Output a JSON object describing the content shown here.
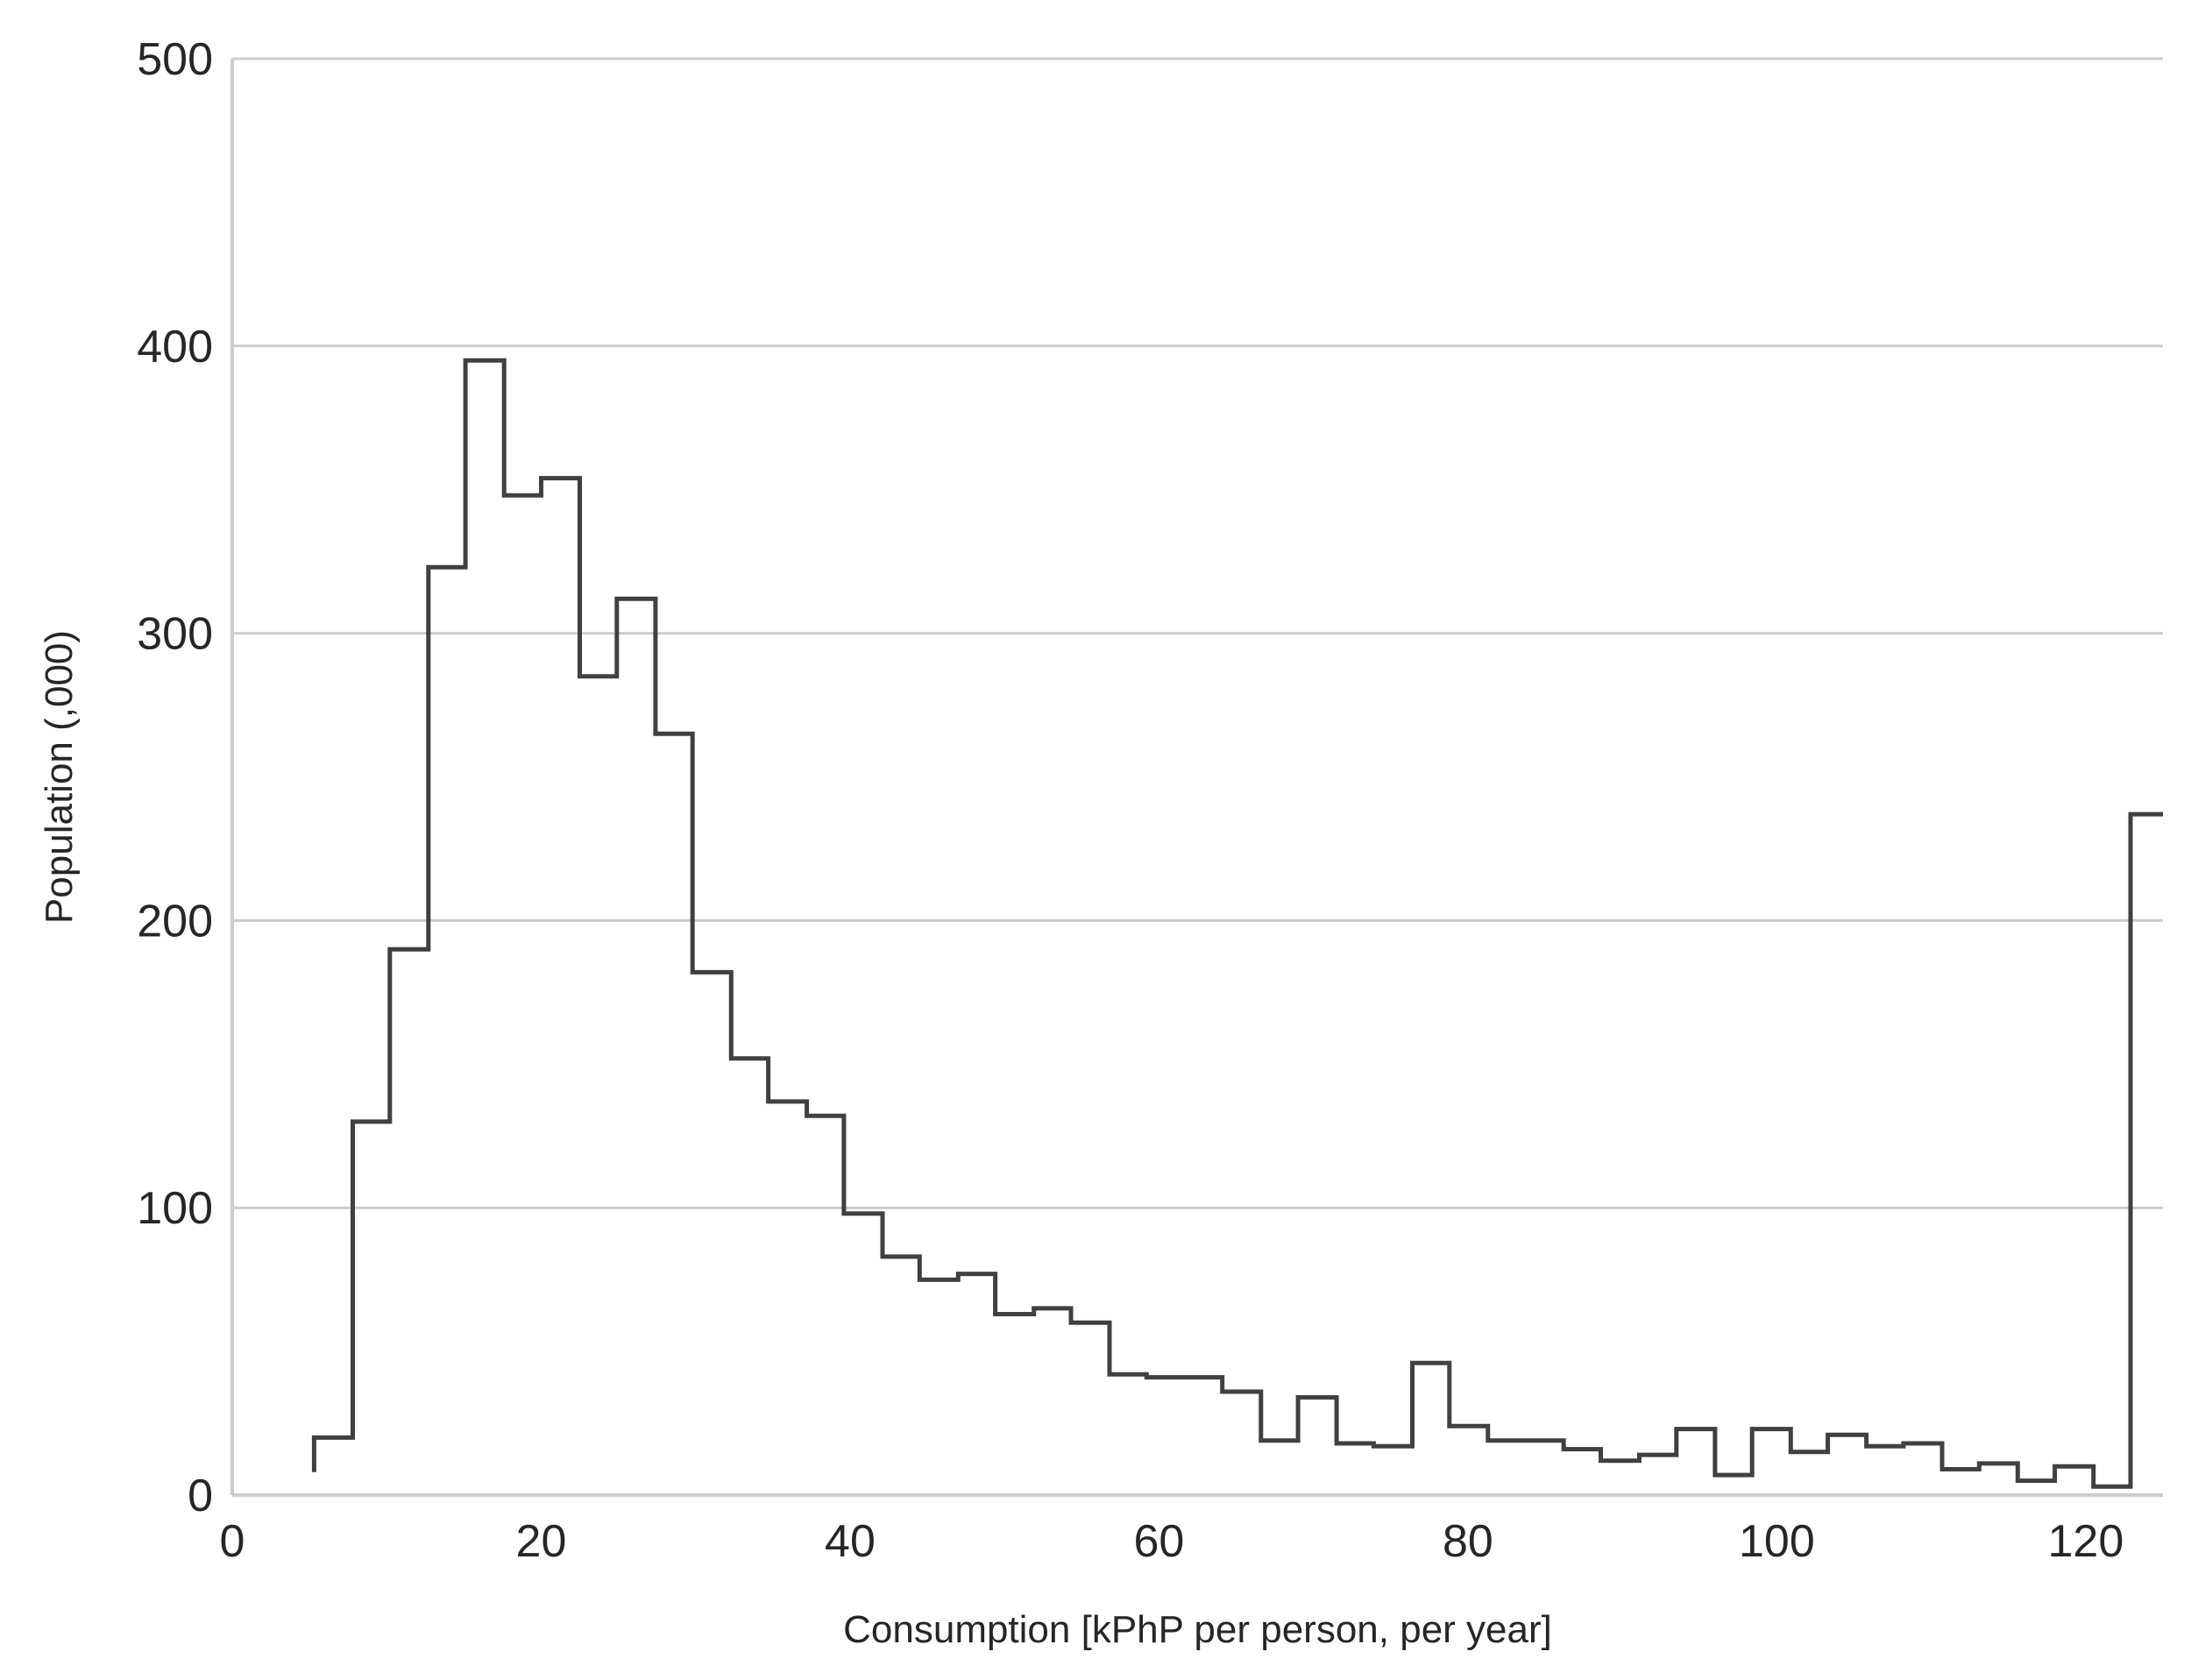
{
  "chart_data": {
    "type": "histogram-step",
    "title": "",
    "xlabel": "Consumption [kPhP per person, per year]",
    "ylabel": "Population (,000)",
    "xlim": [
      0,
      125
    ],
    "ylim": [
      0,
      500
    ],
    "x_ticks": [
      "0",
      "20",
      "40",
      "60",
      "80",
      "100",
      "120"
    ],
    "y_ticks": [
      "0",
      "100",
      "200",
      "300",
      "400",
      "500"
    ],
    "grid": "horizontal",
    "line_color": "#404040",
    "bin_edges": [
      5.3,
      7.8,
      10.2,
      12.7,
      15.1,
      17.6,
      20.0,
      22.5,
      24.9,
      27.4,
      29.8,
      32.3,
      34.7,
      37.2,
      39.6,
      42.1,
      44.5,
      47.0,
      49.4,
      51.9,
      54.3,
      56.8,
      59.2,
      61.7,
      64.1,
      66.6,
      69.0,
      71.5,
      73.9,
      76.4,
      78.8,
      81.3,
      83.7,
      86.2,
      88.6,
      91.1,
      93.5,
      96.0,
      98.4,
      100.9,
      103.3,
      105.8,
      108.2,
      110.7,
      113.1,
      115.6,
      118.0,
      120.5,
      122.9,
      125.0
    ],
    "values": [
      20,
      130,
      190,
      323,
      395,
      348,
      354,
      285,
      312,
      265,
      182,
      152,
      137,
      132,
      98,
      83,
      75,
      77,
      63,
      65,
      60,
      42,
      41,
      41,
      36,
      19,
      34,
      18,
      17,
      46,
      24,
      19,
      19,
      16,
      12,
      14,
      23,
      7,
      23,
      15,
      21,
      17,
      18,
      9,
      11,
      5,
      10,
      3,
      237
    ],
    "start_value": 8
  }
}
